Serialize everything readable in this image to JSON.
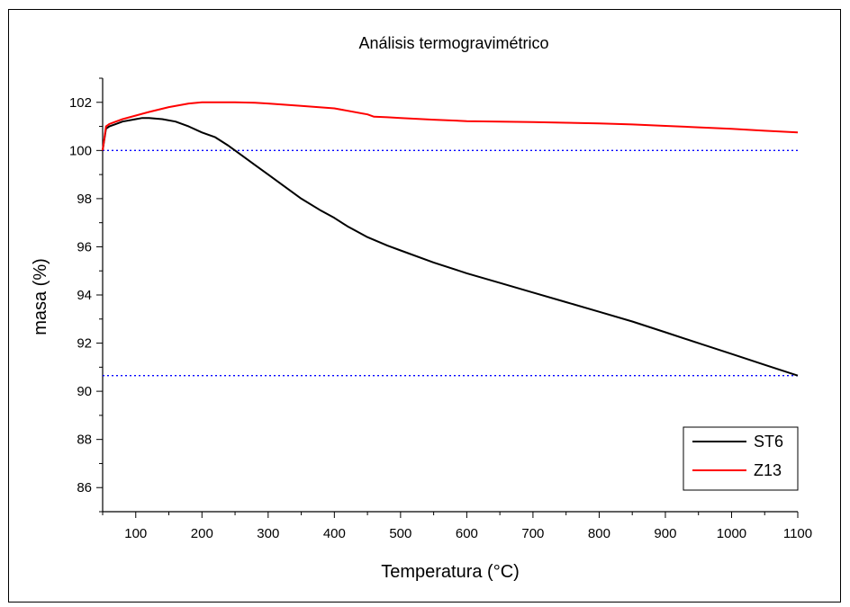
{
  "chart_data": {
    "type": "line",
    "title": "Análisis termogravimétrico",
    "xlabel": "Temperatura (°C)",
    "ylabel": "masa (%)",
    "xlim": [
      50,
      1100
    ],
    "ylim": [
      85,
      103
    ],
    "x_ticks": [
      100,
      200,
      300,
      400,
      500,
      600,
      700,
      800,
      900,
      1000,
      1100
    ],
    "y_ticks": [
      86,
      88,
      90,
      92,
      94,
      96,
      98,
      100,
      102
    ],
    "grid": false,
    "legend_position": "bottom-right",
    "series": [
      {
        "name": "ST6",
        "color": "#000000",
        "x": [
          50,
          55,
          60,
          70,
          80,
          100,
          110,
          120,
          140,
          160,
          180,
          200,
          210,
          220,
          240,
          250,
          260,
          280,
          300,
          320,
          350,
          380,
          400,
          420,
          450,
          480,
          500,
          550,
          600,
          650,
          700,
          750,
          800,
          850,
          900,
          950,
          1000,
          1050,
          1100
        ],
        "y": [
          100.0,
          100.9,
          101.0,
          101.1,
          101.2,
          101.3,
          101.35,
          101.35,
          101.3,
          101.2,
          101.0,
          100.75,
          100.65,
          100.55,
          100.2,
          100.0,
          99.8,
          99.4,
          99.0,
          98.6,
          98.0,
          97.5,
          97.2,
          96.85,
          96.4,
          96.05,
          95.85,
          95.35,
          94.9,
          94.5,
          94.1,
          93.7,
          93.3,
          92.9,
          92.45,
          92.0,
          91.55,
          91.1,
          90.65
        ]
      },
      {
        "name": "Z13",
        "color": "#ff0000",
        "x": [
          50,
          55,
          60,
          70,
          80,
          100,
          120,
          150,
          180,
          200,
          220,
          250,
          280,
          300,
          350,
          400,
          450,
          460,
          480,
          500,
          550,
          600,
          650,
          700,
          750,
          800,
          850,
          900,
          950,
          1000,
          1050,
          1100
        ],
        "y": [
          100.0,
          101.0,
          101.1,
          101.2,
          101.3,
          101.45,
          101.6,
          101.8,
          101.95,
          102.0,
          102.0,
          102.0,
          101.98,
          101.95,
          101.85,
          101.75,
          101.5,
          101.4,
          101.38,
          101.35,
          101.28,
          101.22,
          101.2,
          101.18,
          101.15,
          101.12,
          101.08,
          101.02,
          100.96,
          100.9,
          100.82,
          100.75
        ]
      }
    ],
    "reference_lines": [
      {
        "y": 100.0,
        "color": "#0000ff",
        "style": "dotted"
      },
      {
        "y": 90.65,
        "color": "#0000ff",
        "style": "dotted"
      }
    ]
  }
}
